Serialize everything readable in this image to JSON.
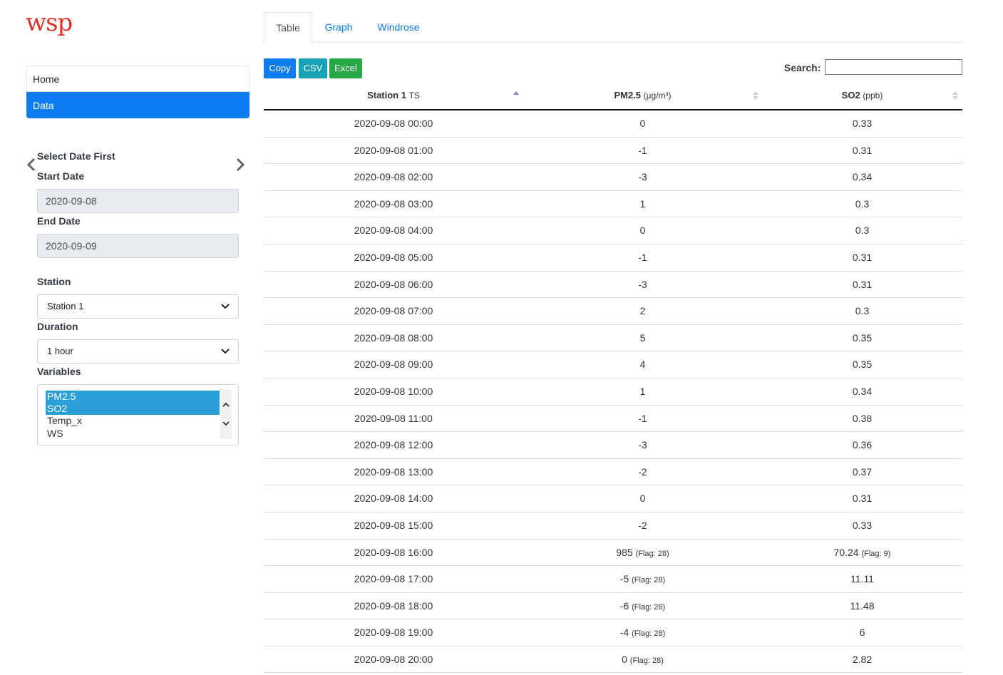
{
  "logo": {
    "text": "wsp"
  },
  "nav": {
    "items": [
      {
        "label": "Home"
      },
      {
        "label": "Data"
      }
    ]
  },
  "filters": {
    "select_date_label": "Select Date First",
    "start_date_label": "Start Date",
    "start_date_value": "2020-09-08",
    "end_date_label": "End Date",
    "end_date_value": "2020-09-09",
    "station_label": "Station",
    "station_value": "Station 1",
    "duration_label": "Duration",
    "duration_value": "1 hour",
    "variables_label": "Variables",
    "variables_options": [
      {
        "label": "PM2.5",
        "selected": true
      },
      {
        "label": "SO2",
        "selected": true
      },
      {
        "label": "Temp_x",
        "selected": false
      },
      {
        "label": "WS",
        "selected": false
      }
    ]
  },
  "tabs": [
    {
      "label": "Table"
    },
    {
      "label": "Graph"
    },
    {
      "label": "Windrose"
    }
  ],
  "toolbar": {
    "copy": "Copy",
    "csv": "CSV",
    "excel": "Excel",
    "search_label": "Search:",
    "search_value": ""
  },
  "table": {
    "headers": [
      {
        "main": "Station 1",
        "unit": "TS"
      },
      {
        "main": "PM2.5",
        "unit": "(µg/m³)"
      },
      {
        "main": "SO2",
        "unit": "(ppb)"
      }
    ],
    "rows": [
      {
        "ts": "2020-09-08 00:00",
        "pm25": "0",
        "pm25_flag": "",
        "so2": "0.33",
        "so2_flag": ""
      },
      {
        "ts": "2020-09-08 01:00",
        "pm25": "-1",
        "pm25_flag": "",
        "so2": "0.31",
        "so2_flag": ""
      },
      {
        "ts": "2020-09-08 02:00",
        "pm25": "-3",
        "pm25_flag": "",
        "so2": "0.34",
        "so2_flag": ""
      },
      {
        "ts": "2020-09-08 03:00",
        "pm25": "1",
        "pm25_flag": "",
        "so2": "0.3",
        "so2_flag": ""
      },
      {
        "ts": "2020-09-08 04:00",
        "pm25": "0",
        "pm25_flag": "",
        "so2": "0.3",
        "so2_flag": ""
      },
      {
        "ts": "2020-09-08 05:00",
        "pm25": "-1",
        "pm25_flag": "",
        "so2": "0.31",
        "so2_flag": ""
      },
      {
        "ts": "2020-09-08 06:00",
        "pm25": "-3",
        "pm25_flag": "",
        "so2": "0.31",
        "so2_flag": ""
      },
      {
        "ts": "2020-09-08 07:00",
        "pm25": "2",
        "pm25_flag": "",
        "so2": "0.3",
        "so2_flag": ""
      },
      {
        "ts": "2020-09-08 08:00",
        "pm25": "5",
        "pm25_flag": "",
        "so2": "0.35",
        "so2_flag": ""
      },
      {
        "ts": "2020-09-08 09:00",
        "pm25": "4",
        "pm25_flag": "",
        "so2": "0.35",
        "so2_flag": ""
      },
      {
        "ts": "2020-09-08 10:00",
        "pm25": "1",
        "pm25_flag": "",
        "so2": "0.34",
        "so2_flag": ""
      },
      {
        "ts": "2020-09-08 11:00",
        "pm25": "-1",
        "pm25_flag": "",
        "so2": "0.38",
        "so2_flag": ""
      },
      {
        "ts": "2020-09-08 12:00",
        "pm25": "-3",
        "pm25_flag": "",
        "so2": "0.36",
        "so2_flag": ""
      },
      {
        "ts": "2020-09-08 13:00",
        "pm25": "-2",
        "pm25_flag": "",
        "so2": "0.37",
        "so2_flag": ""
      },
      {
        "ts": "2020-09-08 14:00",
        "pm25": "0",
        "pm25_flag": "",
        "so2": "0.31",
        "so2_flag": ""
      },
      {
        "ts": "2020-09-08 15:00",
        "pm25": "-2",
        "pm25_flag": "",
        "so2": "0.33",
        "so2_flag": ""
      },
      {
        "ts": "2020-09-08 16:00",
        "pm25": "985",
        "pm25_flag": "(Flag: 28)",
        "so2": "70.24",
        "so2_flag": "(Flag: 9)"
      },
      {
        "ts": "2020-09-08 17:00",
        "pm25": "-5",
        "pm25_flag": "(Flag: 28)",
        "so2": "11.11",
        "so2_flag": ""
      },
      {
        "ts": "2020-09-08 18:00",
        "pm25": "-6",
        "pm25_flag": "(Flag: 28)",
        "so2": "11.48",
        "so2_flag": ""
      },
      {
        "ts": "2020-09-08 19:00",
        "pm25": "-4",
        "pm25_flag": "(Flag: 28)",
        "so2": "6",
        "so2_flag": ""
      },
      {
        "ts": "2020-09-08 20:00",
        "pm25": "0",
        "pm25_flag": "(Flag: 28)",
        "so2": "2.82",
        "so2_flag": ""
      }
    ]
  },
  "colors": {
    "primary": "#0d7bf2",
    "info": "#17a2b8",
    "success": "#28a745",
    "selected_option": "#2a9fd8",
    "logo_red": "#e0332b"
  }
}
